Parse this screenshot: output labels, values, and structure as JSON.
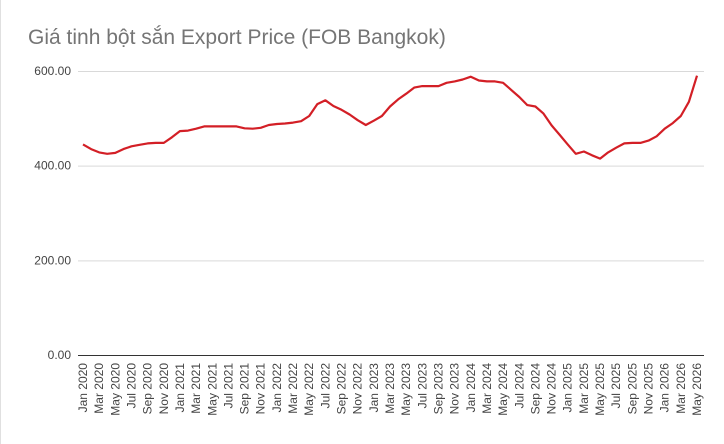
{
  "chart_data": {
    "type": "line",
    "title": "Giá tinh bột sắn Export Price (FOB Bangkok)",
    "categories": [
      "Jan 2020",
      null,
      "Mar 2020",
      null,
      "May 2020",
      null,
      "Jul 2020",
      null,
      "Sep 2020",
      null,
      "Nov 2020",
      null,
      "Jan 2021",
      null,
      "Mar 2021",
      null,
      "May 2021",
      null,
      "Jul 2021",
      null,
      "Sep 2021",
      null,
      "Nov 2021",
      null,
      "Jan 2022",
      null,
      "Mar 2022",
      null,
      "May 2022",
      null,
      "Jul 2022",
      null,
      "Sep 2022",
      null,
      "Nov 2022",
      null,
      "Jan 2023",
      null,
      "Mar 2023",
      null,
      "May 2023",
      null,
      "Jul 2023",
      null,
      "Sep 2023",
      null,
      "Nov 2023",
      null,
      "Jan 2024",
      null,
      "Mar 2024",
      null,
      "May 2024",
      null,
      "Jul 2024",
      null,
      "Sep 2024",
      null,
      "Nov 2024",
      null,
      "Jan 2025",
      null,
      "Mar 2025",
      null,
      "May 2025",
      null,
      "Jul 2025",
      null,
      "Sep 2025",
      null,
      "Nov 2025",
      null,
      "Jan 2026",
      null,
      "Mar 2026",
      null,
      "May 2026"
    ],
    "series": [
      {
        "color": "#d31f26",
        "values": [
          445,
          435,
          428,
          425,
          427,
          435,
          441,
          444,
          447,
          448,
          448,
          460,
          473,
          474,
          478,
          483,
          483,
          483,
          483,
          483,
          479,
          478,
          480,
          486,
          488,
          489,
          491,
          494,
          505,
          530,
          538,
          526,
          518,
          508,
          496,
          486,
          495,
          505,
          525,
          540,
          552,
          565,
          568,
          568,
          568,
          575,
          578,
          582,
          588,
          580,
          578,
          578,
          575,
          560,
          545,
          528,
          525,
          510,
          485,
          465,
          445,
          425,
          430,
          422,
          415,
          428,
          438,
          447,
          448,
          448,
          453,
          462,
          478,
          490,
          505,
          535,
          590
        ]
      }
    ],
    "ylim": [
      0,
      600
    ],
    "yticks": [
      {
        "value": 0,
        "label": "0.00"
      },
      {
        "value": 200,
        "label": "200.00"
      },
      {
        "value": 400,
        "label": "400.00"
      },
      {
        "value": 600,
        "label": "600.00"
      }
    ],
    "grid": true
  }
}
